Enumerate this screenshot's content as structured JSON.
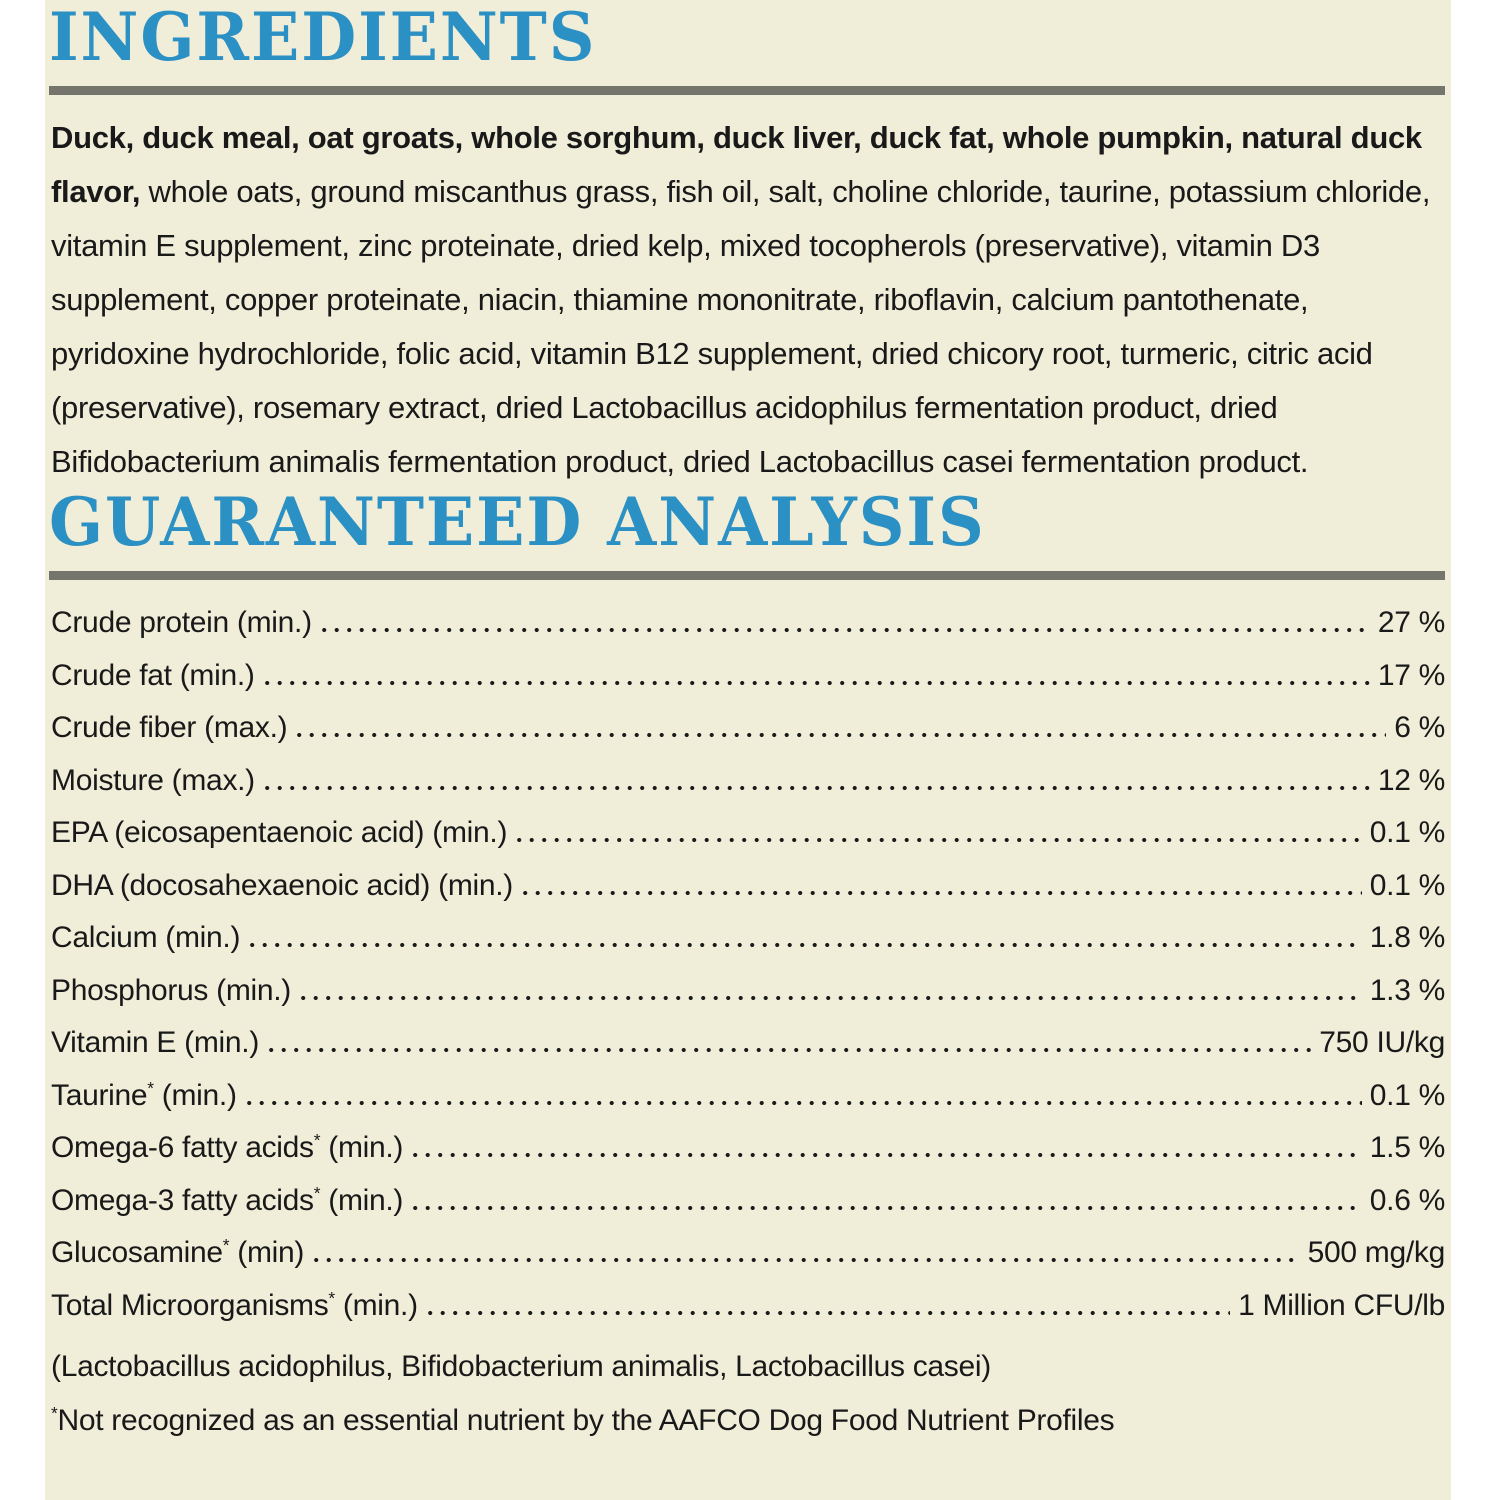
{
  "colors": {
    "page_bg": "#ffffff",
    "label_bg": "#f0edd9",
    "accent_blue": "#2b90c3",
    "rule_gray": "#75746d",
    "text": "#191919"
  },
  "ingredients": {
    "title": "INGREDIENTS",
    "bold_lead": "Duck, duck meal, oat groats, whole sorghum, duck liver, duck fat, whole pumpkin, natural duck flavor,",
    "rest": " whole oats, ground miscanthus grass, fish oil, salt, choline chloride, taurine, potassium chloride, vitamin E supplement, zinc proteinate, dried kelp, mixed tocopherols (preservative), vitamin D3 supplement, copper proteinate, niacin, thiamine mononitrate, riboflavin, calcium pantothenate, pyridoxine hydrochloride, folic acid, vitamin B12 supplement, dried chicory root, turmeric, citric acid (preservative), rosemary extract, dried Lactobacillus acidophilus fermentation product, dried Bifidobacterium animalis fermentation product, dried Lactobacillus casei fermentation product."
  },
  "guaranteed_analysis": {
    "title": "GUARANTEED ANALYSIS",
    "rows": [
      {
        "pre": "Crude protein",
        "sup": "",
        "post": " (min.)",
        "value": "27 %"
      },
      {
        "pre": "Crude fat",
        "sup": "",
        "post": " (min.)",
        "value": "17 %"
      },
      {
        "pre": "Crude fiber",
        "sup": "",
        "post": " (max.)",
        "value": "6 %"
      },
      {
        "pre": "Moisture",
        "sup": "",
        "post": " (max.)",
        "value": "12 %"
      },
      {
        "pre": "EPA (eicosapentaenoic acid)",
        "sup": "",
        "post": " (min.)",
        "value": "0.1 %"
      },
      {
        "pre": "DHA (docosahexaenoic acid)",
        "sup": "",
        "post": " (min.)",
        "value": "0.1 %"
      },
      {
        "pre": "Calcium",
        "sup": "",
        "post": " (min.)",
        "value": "1.8 %"
      },
      {
        "pre": "Phosphorus",
        "sup": "",
        "post": " (min.)",
        "value": "1.3 %"
      },
      {
        "pre": "Vitamin E",
        "sup": "",
        "post": " (min.)",
        "value": "750 IU/kg"
      },
      {
        "pre": "Taurine",
        "sup": "*",
        "post": " (min.)",
        "value": "0.1 %"
      },
      {
        "pre": "Omega-6 fatty acids",
        "sup": "*",
        "post": " (min.)",
        "value": "1.5 %"
      },
      {
        "pre": "Omega-3 fatty acids",
        "sup": "*",
        "post": " (min.)",
        "value": "0.6 %"
      },
      {
        "pre": "Glucosamine",
        "sup": "*",
        "post": " (min)",
        "value": "500 mg/kg"
      },
      {
        "pre": "Total Microorganisms",
        "sup": "*",
        "post": " (min.)",
        "value": "1 Million CFU/lb"
      }
    ],
    "subnote": "(Lactobacillus acidophilus, Bifidobacterium animalis, Lactobacillus casei)",
    "footnote_sup": "*",
    "footnote_text": "Not recognized as an essential nutrient by the AAFCO Dog Food Nutrient Profiles"
  }
}
